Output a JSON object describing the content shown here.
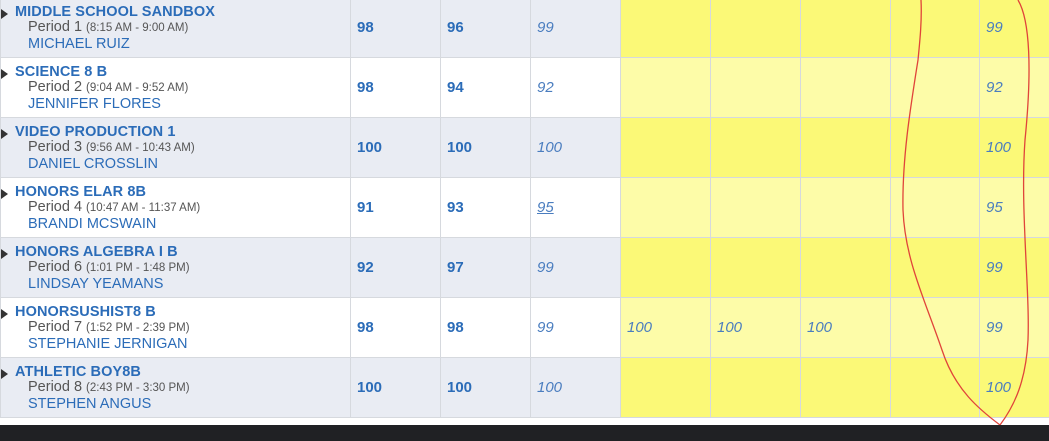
{
  "courses": [
    {
      "name": "MIDDLE SCHOOL SANDBOX",
      "period": "Period 1",
      "time": "(8:15 AM - 9:00 AM)",
      "teacher": "MICHAEL RUIZ",
      "g1": "98",
      "g2": "96",
      "g3": "99",
      "y1": "",
      "y2": "",
      "y3": "",
      "final": "99"
    },
    {
      "name": "SCIENCE 8 B",
      "period": "Period 2",
      "time": "(9:04 AM - 9:52 AM)",
      "teacher": "JENNIFER FLORES",
      "g1": "98",
      "g2": "94",
      "g3": "92",
      "y1": "",
      "y2": "",
      "y3": "",
      "final": "92"
    },
    {
      "name": "VIDEO PRODUCTION 1",
      "period": "Period 3",
      "time": "(9:56 AM - 10:43 AM)",
      "teacher": "DANIEL CROSSLIN",
      "g1": "100",
      "g2": "100",
      "g3": "100",
      "y1": "",
      "y2": "",
      "y3": "",
      "final": "100"
    },
    {
      "name": "HONORS ELAR 8B",
      "period": "Period 4",
      "time": "(10:47 AM - 11:37 AM)",
      "teacher": "BRANDI MCSWAIN",
      "g1": "91",
      "g2": "93",
      "g3": "95",
      "y1": "",
      "y2": "",
      "y3": "",
      "final": "95"
    },
    {
      "name": "HONORS ALGEBRA I B",
      "period": "Period 6",
      "time": "(1:01 PM - 1:48 PM)",
      "teacher": "LINDSAY YEAMANS",
      "g1": "92",
      "g2": "97",
      "g3": "99",
      "y1": "",
      "y2": "",
      "y3": "",
      "final": "99"
    },
    {
      "name": "HONORSUSHIST8 B",
      "period": "Period 7",
      "time": "(1:52 PM - 2:39 PM)",
      "teacher": "STEPHANIE JERNIGAN",
      "g1": "98",
      "g2": "98",
      "g3": "99",
      "y1": "100",
      "y2": "100",
      "y3": "100",
      "final": "99"
    },
    {
      "name": "ATHLETIC BOY8B",
      "period": "Period 8",
      "time": "(2:43 PM - 3:30 PM)",
      "teacher": "STEPHEN ANGUS",
      "g1": "100",
      "g2": "100",
      "g3": "100",
      "y1": "",
      "y2": "",
      "y3": "",
      "final": "100"
    }
  ],
  "colors": {
    "link_blue": "#2b6cb8",
    "grade_italic": "#4a7dbf",
    "row_alt": "#e9ecf3",
    "yellow": "#fbf977",
    "yellow_light": "#fdfca8",
    "annotation_red": "#e0443a"
  },
  "icons": {
    "row_toggle": "triangle-right-icon"
  }
}
